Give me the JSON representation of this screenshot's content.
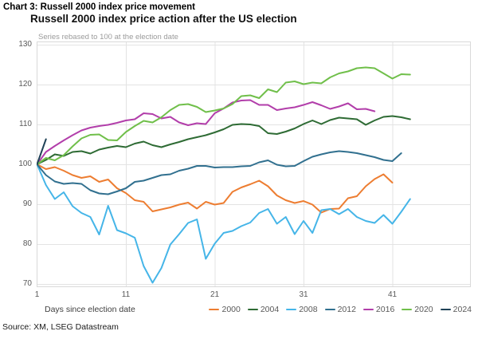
{
  "header": {
    "label": "Chart 3: Russell 2000 index price movement"
  },
  "chart": {
    "title": "Russell 2000 index price action after the US election",
    "subtitle": "Series rebased to 100 at the election date",
    "x_axis_title": "Days since election date",
    "source": "Source: XM, LSEG Datastream"
  },
  "colors": {
    "grid": "#e3e3e3",
    "plot_border": "#d9d9d9",
    "tick_text": "#595959",
    "subtitle_text": "#9b9b9b"
  },
  "chart_data": {
    "type": "line",
    "title": "Russell 2000 index price action after the US election",
    "subtitle": "Series rebased to 100 at the election date",
    "xlabel": "Days since election date",
    "ylabel": "",
    "x_unit": "trading days since election, day 1 = election date",
    "x_ticks": [
      1,
      11,
      21,
      31,
      41
    ],
    "y_ticks": [
      70,
      80,
      90,
      100,
      110,
      120,
      130
    ],
    "ylim": [
      70,
      130
    ],
    "xlim": [
      1,
      49.8
    ],
    "grid": true,
    "legend_position": "bottom-right",
    "rebased_level": 100,
    "series": [
      {
        "name": "2000",
        "color": "#ed7d31",
        "start_day": 1,
        "values": [
          100,
          98.8,
          99.3,
          98.4,
          97.3,
          96.6,
          97.0,
          95.6,
          96.2,
          94.0,
          92.8,
          91.0,
          90.6,
          88.2,
          88.7,
          89.2,
          89.9,
          90.4,
          88.9,
          90.6,
          89.9,
          90.3,
          93.1,
          94.2,
          95.0,
          95.9,
          94.5,
          92.2,
          91.0,
          90.3,
          90.8,
          89.9,
          87.9,
          88.8,
          88.9,
          91.5,
          92.0,
          94.5,
          96.3,
          97.5,
          95.4
        ]
      },
      {
        "name": "2004",
        "color": "#2e6b34",
        "start_day": 1,
        "values": [
          100,
          101.1,
          102.5,
          102.1,
          103.1,
          103.3,
          102.7,
          103.7,
          104.2,
          104.6,
          104.3,
          105.2,
          105.7,
          104.8,
          104.3,
          105.0,
          105.6,
          106.3,
          106.8,
          107.3,
          108.0,
          108.8,
          109.9,
          110.1,
          110.0,
          109.6,
          107.8,
          107.6,
          108.2,
          109.0,
          110.1,
          111.0,
          110.1,
          111.1,
          111.7,
          111.5,
          111.3,
          109.9,
          111.0,
          111.9,
          112.1,
          111.8,
          111.3
        ]
      },
      {
        "name": "2008",
        "color": "#45b5e8",
        "start_day": 1,
        "values": [
          100,
          94.8,
          91.3,
          93.0,
          89.5,
          87.8,
          86.8,
          82.4,
          89.6,
          83.5,
          82.7,
          81.6,
          74.5,
          70.3,
          74.0,
          79.9,
          82.5,
          85.3,
          86.2,
          76.3,
          80.1,
          82.8,
          83.3,
          84.5,
          85.4,
          87.8,
          88.8,
          85.1,
          86.8,
          82.5,
          85.8,
          82.8,
          88.5,
          88.8,
          87.5,
          88.8,
          86.8,
          85.8,
          85.3,
          87.3,
          85.1,
          88.1,
          91.3
        ]
      },
      {
        "name": "2012",
        "color": "#31708f",
        "start_day": 1,
        "values": [
          100,
          97.3,
          95.7,
          95.1,
          95.3,
          95.1,
          93.5,
          92.7,
          92.5,
          93.2,
          94.0,
          95.6,
          95.9,
          96.6,
          97.3,
          97.5,
          98.4,
          98.9,
          99.6,
          99.6,
          99.2,
          99.3,
          99.3,
          99.5,
          99.6,
          100.5,
          101.0,
          99.9,
          99.5,
          99.6,
          100.8,
          101.9,
          102.5,
          103.0,
          103.3,
          103.1,
          102.8,
          102.3,
          101.8,
          101.1,
          100.8,
          102.8
        ]
      },
      {
        "name": "2016",
        "color": "#b23eaa",
        "start_day": 1,
        "values": [
          100,
          103.1,
          104.6,
          106.0,
          107.3,
          108.5,
          109.2,
          109.6,
          109.9,
          110.4,
          111.0,
          111.3,
          112.8,
          112.6,
          111.5,
          111.9,
          110.5,
          109.8,
          110.3,
          110.1,
          112.8,
          114.0,
          115.5,
          116.0,
          116.1,
          114.9,
          114.9,
          113.6,
          114.0,
          114.3,
          114.9,
          115.6,
          114.8,
          113.9,
          114.5,
          115.3,
          113.8,
          113.9,
          113.3
        ]
      },
      {
        "name": "2020",
        "color": "#70bf4a",
        "start_day": 1,
        "values": [
          100,
          101.6,
          101.0,
          102.3,
          104.5,
          106.5,
          107.4,
          107.5,
          106.1,
          106.0,
          108.1,
          109.6,
          110.9,
          110.5,
          111.8,
          113.6,
          114.9,
          115.1,
          114.4,
          113.1,
          113.5,
          114.0,
          115.1,
          117.1,
          117.3,
          116.6,
          118.8,
          118.1,
          120.5,
          120.8,
          120.1,
          120.5,
          120.3,
          121.8,
          122.8,
          123.3,
          124.1,
          124.3,
          124.1,
          122.8,
          121.5,
          122.6,
          122.5
        ]
      },
      {
        "name": "2024",
        "color": "#1f4257",
        "start_day": 1,
        "values": [
          100,
          106.3
        ]
      }
    ]
  }
}
